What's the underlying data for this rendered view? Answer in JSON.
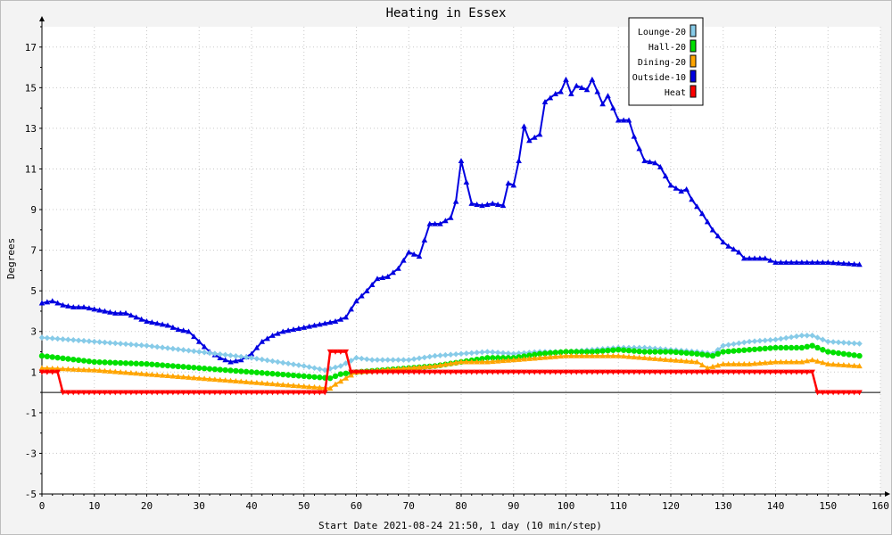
{
  "chart_data": {
    "type": "line",
    "title": "Heating in Essex",
    "xlabel": "Start Date 2021-08-24 21:50, 1 day (10 min/step)",
    "ylabel": "Degrees",
    "xlim": [
      0,
      160
    ],
    "ylim": [
      -5,
      18
    ],
    "x_ticks": [
      0,
      10,
      20,
      30,
      40,
      50,
      60,
      70,
      80,
      90,
      100,
      110,
      120,
      130,
      140,
      150,
      160
    ],
    "y_ticks": [
      -5,
      -3,
      -1,
      1,
      3,
      5,
      7,
      9,
      11,
      13,
      15,
      17
    ],
    "grid": true,
    "legend_position": "top-right",
    "series": [
      {
        "name": "Lounge-20",
        "color": "#87cbe8",
        "marker": "diamond",
        "points": [
          [
            0,
            2.7
          ],
          [
            10,
            2.5
          ],
          [
            20,
            2.3
          ],
          [
            30,
            2.0
          ],
          [
            40,
            1.7
          ],
          [
            45,
            1.5
          ],
          [
            50,
            1.3
          ],
          [
            54,
            1.1
          ],
          [
            57,
            1.3
          ],
          [
            60,
            1.7
          ],
          [
            63,
            1.6
          ],
          [
            70,
            1.6
          ],
          [
            75,
            1.8
          ],
          [
            80,
            1.9
          ],
          [
            85,
            2.0
          ],
          [
            90,
            1.9
          ],
          [
            95,
            2.0
          ],
          [
            100,
            2.0
          ],
          [
            105,
            2.1
          ],
          [
            110,
            2.2
          ],
          [
            115,
            2.2
          ],
          [
            120,
            2.1
          ],
          [
            125,
            2.0
          ],
          [
            128,
            1.9
          ],
          [
            130,
            2.3
          ],
          [
            135,
            2.5
          ],
          [
            140,
            2.6
          ],
          [
            145,
            2.8
          ],
          [
            147,
            2.8
          ],
          [
            150,
            2.5
          ],
          [
            156,
            2.4
          ]
        ]
      },
      {
        "name": "Hall-20",
        "color": "#00e000",
        "marker": "circle",
        "points": [
          [
            0,
            1.8
          ],
          [
            10,
            1.5
          ],
          [
            20,
            1.4
          ],
          [
            30,
            1.2
          ],
          [
            40,
            1.0
          ],
          [
            50,
            0.8
          ],
          [
            55,
            0.7
          ],
          [
            57,
            0.9
          ],
          [
            60,
            1.0
          ],
          [
            65,
            1.1
          ],
          [
            70,
            1.2
          ],
          [
            75,
            1.3
          ],
          [
            80,
            1.5
          ],
          [
            85,
            1.7
          ],
          [
            90,
            1.7
          ],
          [
            95,
            1.9
          ],
          [
            100,
            2.0
          ],
          [
            105,
            2.0
          ],
          [
            110,
            2.1
          ],
          [
            115,
            2.0
          ],
          [
            120,
            2.0
          ],
          [
            125,
            1.9
          ],
          [
            128,
            1.8
          ],
          [
            130,
            2.0
          ],
          [
            135,
            2.1
          ],
          [
            140,
            2.2
          ],
          [
            145,
            2.2
          ],
          [
            147,
            2.3
          ],
          [
            150,
            2.0
          ],
          [
            156,
            1.8
          ]
        ]
      },
      {
        "name": "Dining-20",
        "color": "#ffa500",
        "marker": "triangle-up",
        "points": [
          [
            0,
            1.2
          ],
          [
            10,
            1.1
          ],
          [
            20,
            0.9
          ],
          [
            30,
            0.7
          ],
          [
            40,
            0.5
          ],
          [
            50,
            0.3
          ],
          [
            55,
            0.2
          ],
          [
            56,
            0.4
          ],
          [
            58,
            0.7
          ],
          [
            60,
            1.0
          ],
          [
            65,
            1.1
          ],
          [
            70,
            1.2
          ],
          [
            75,
            1.3
          ],
          [
            80,
            1.5
          ],
          [
            85,
            1.5
          ],
          [
            90,
            1.6
          ],
          [
            95,
            1.7
          ],
          [
            100,
            1.8
          ],
          [
            105,
            1.8
          ],
          [
            110,
            1.8
          ],
          [
            115,
            1.7
          ],
          [
            120,
            1.6
          ],
          [
            125,
            1.5
          ],
          [
            127,
            1.2
          ],
          [
            130,
            1.4
          ],
          [
            135,
            1.4
          ],
          [
            140,
            1.5
          ],
          [
            145,
            1.5
          ],
          [
            147,
            1.6
          ],
          [
            150,
            1.4
          ],
          [
            156,
            1.3
          ]
        ]
      },
      {
        "name": "Outside-10",
        "color": "#0000e0",
        "marker": "triangle-up",
        "points": [
          [
            0,
            4.4
          ],
          [
            2,
            4.5
          ],
          [
            4,
            4.3
          ],
          [
            6,
            4.2
          ],
          [
            8,
            4.2
          ],
          [
            10,
            4.1
          ],
          [
            12,
            4.0
          ],
          [
            14,
            3.9
          ],
          [
            16,
            3.9
          ],
          [
            18,
            3.7
          ],
          [
            20,
            3.5
          ],
          [
            22,
            3.4
          ],
          [
            24,
            3.3
          ],
          [
            26,
            3.1
          ],
          [
            28,
            3.0
          ],
          [
            30,
            2.5
          ],
          [
            32,
            2.0
          ],
          [
            34,
            1.7
          ],
          [
            36,
            1.5
          ],
          [
            38,
            1.6
          ],
          [
            40,
            1.9
          ],
          [
            42,
            2.5
          ],
          [
            44,
            2.8
          ],
          [
            46,
            3.0
          ],
          [
            48,
            3.1
          ],
          [
            50,
            3.2
          ],
          [
            52,
            3.3
          ],
          [
            54,
            3.4
          ],
          [
            56,
            3.5
          ],
          [
            58,
            3.7
          ],
          [
            60,
            4.5
          ],
          [
            62,
            5.0
          ],
          [
            64,
            5.6
          ],
          [
            66,
            5.7
          ],
          [
            68,
            6.1
          ],
          [
            70,
            6.9
          ],
          [
            72,
            6.7
          ],
          [
            74,
            8.3
          ],
          [
            76,
            8.3
          ],
          [
            78,
            8.6
          ],
          [
            79,
            9.4
          ],
          [
            80,
            11.4
          ],
          [
            82,
            9.3
          ],
          [
            84,
            9.2
          ],
          [
            86,
            9.3
          ],
          [
            88,
            9.2
          ],
          [
            89,
            10.3
          ],
          [
            90,
            10.2
          ],
          [
            91,
            11.4
          ],
          [
            92,
            13.1
          ],
          [
            93,
            12.4
          ],
          [
            95,
            12.7
          ],
          [
            96,
            14.3
          ],
          [
            98,
            14.7
          ],
          [
            99,
            14.8
          ],
          [
            100,
            15.4
          ],
          [
            101,
            14.7
          ],
          [
            102,
            15.1
          ],
          [
            104,
            14.9
          ],
          [
            105,
            15.4
          ],
          [
            107,
            14.2
          ],
          [
            108,
            14.6
          ],
          [
            110,
            13.4
          ],
          [
            112,
            13.4
          ],
          [
            113,
            12.6
          ],
          [
            115,
            11.4
          ],
          [
            117,
            11.3
          ],
          [
            118,
            11.1
          ],
          [
            120,
            10.2
          ],
          [
            122,
            9.9
          ],
          [
            123,
            10.0
          ],
          [
            124,
            9.5
          ],
          [
            126,
            8.8
          ],
          [
            128,
            8.0
          ],
          [
            130,
            7.4
          ],
          [
            131,
            7.2
          ],
          [
            133,
            6.9
          ],
          [
            134,
            6.6
          ],
          [
            136,
            6.6
          ],
          [
            138,
            6.6
          ],
          [
            140,
            6.4
          ],
          [
            145,
            6.4
          ],
          [
            150,
            6.4
          ],
          [
            156,
            6.3
          ]
        ]
      },
      {
        "name": "Heat",
        "color": "#ff0000",
        "marker": "triangle-down",
        "points": [
          [
            0,
            1
          ],
          [
            3,
            1
          ],
          [
            4,
            0
          ],
          [
            54,
            0
          ],
          [
            55,
            2
          ],
          [
            58,
            2
          ],
          [
            59,
            1
          ],
          [
            147,
            1
          ],
          [
            148,
            0
          ],
          [
            156,
            0
          ]
        ]
      }
    ]
  }
}
